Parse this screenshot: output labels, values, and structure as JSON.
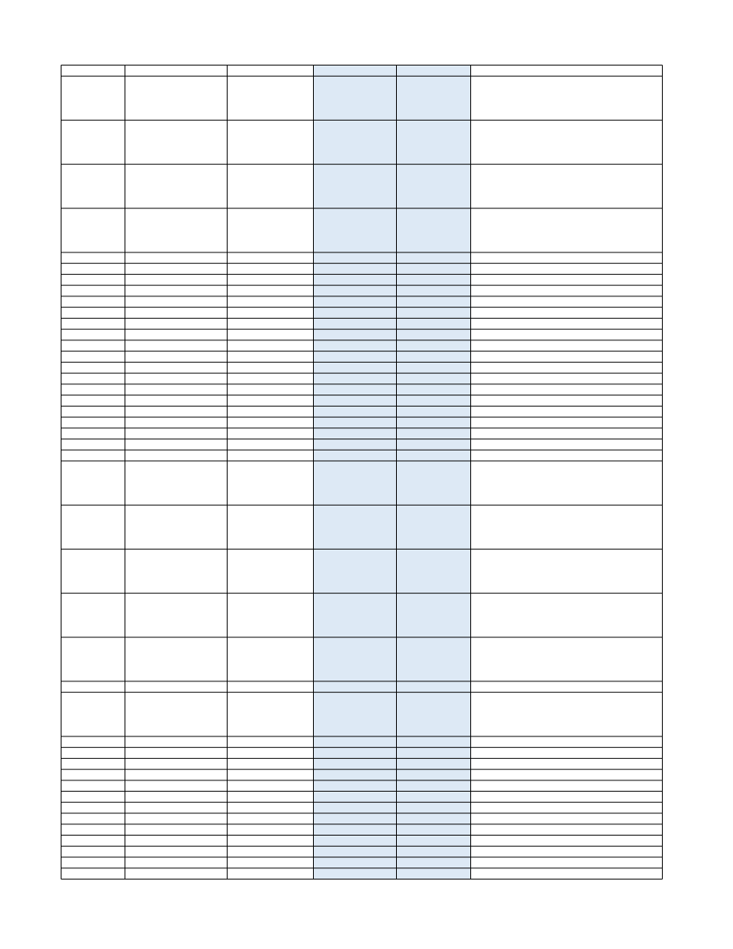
{
  "table": {
    "column_count": 6,
    "shaded_columns": [
      3,
      4
    ],
    "shade_color": "#dde9f5",
    "border_color": "#000000",
    "rows": [
      {
        "size": "short"
      },
      {
        "size": "tall"
      },
      {
        "size": "tall"
      },
      {
        "size": "tall"
      },
      {
        "size": "tall"
      },
      {
        "size": "short"
      },
      {
        "size": "short"
      },
      {
        "size": "short"
      },
      {
        "size": "short"
      },
      {
        "size": "short"
      },
      {
        "size": "short"
      },
      {
        "size": "short"
      },
      {
        "size": "short"
      },
      {
        "size": "short"
      },
      {
        "size": "short"
      },
      {
        "size": "short"
      },
      {
        "size": "short"
      },
      {
        "size": "short"
      },
      {
        "size": "short"
      },
      {
        "size": "short"
      },
      {
        "size": "short"
      },
      {
        "size": "short"
      },
      {
        "size": "short"
      },
      {
        "size": "short"
      },
      {
        "size": "tall"
      },
      {
        "size": "tall"
      },
      {
        "size": "tall"
      },
      {
        "size": "tall"
      },
      {
        "size": "tall"
      },
      {
        "size": "short"
      },
      {
        "size": "tall"
      },
      {
        "size": "short"
      },
      {
        "size": "short"
      },
      {
        "size": "short"
      },
      {
        "size": "short"
      },
      {
        "size": "short"
      },
      {
        "size": "short"
      },
      {
        "size": "short"
      },
      {
        "size": "short"
      },
      {
        "size": "short"
      },
      {
        "size": "short"
      },
      {
        "size": "short"
      },
      {
        "size": "short"
      },
      {
        "size": "short"
      }
    ]
  }
}
